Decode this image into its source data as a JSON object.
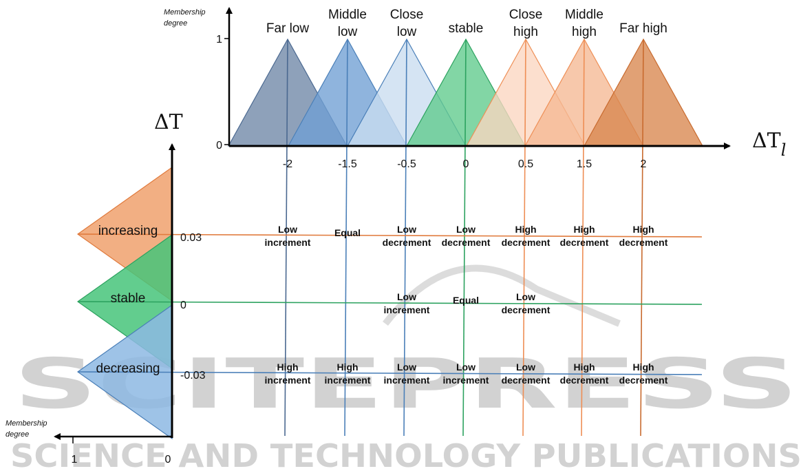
{
  "watermark": {
    "main": "SCITEPRESS",
    "sub": "SCIENCE AND TECHNOLOGY PUBLICATIONS"
  },
  "top_chart": {
    "y_axis_title_line1": "Membership",
    "y_axis_title_line2": "degree",
    "y_tick_one": "1",
    "y_tick_zero": "0",
    "axis_name_main": "ΔT",
    "axis_name_sub": "l",
    "sets": [
      {
        "line1": "Far low",
        "line2": "",
        "center": -2,
        "fill": "#6e87a6",
        "stroke": "#4a6890"
      },
      {
        "line1": "Middle",
        "line2": "low",
        "center": -1.5,
        "fill": "#6f9fd3",
        "stroke": "#4a7fb8"
      },
      {
        "line1": "Close",
        "line2": "low",
        "center": -0.5,
        "fill": "#c9dcef",
        "stroke": "#4a7fb8"
      },
      {
        "line1": "stable",
        "line2": "",
        "center": 0,
        "fill": "#5fcb8c",
        "stroke": "#2ca25f"
      },
      {
        "line1": "Close",
        "line2": "high",
        "center": 0.5,
        "fill": "#fbd6c0",
        "stroke": "#ee8e55"
      },
      {
        "line1": "Middle",
        "line2": "high",
        "center": 1.5,
        "fill": "#f5b994",
        "stroke": "#ee8e55"
      },
      {
        "line1": "Far high",
        "line2": "",
        "center": 2,
        "fill": "#d9864e",
        "stroke": "#c86a2e"
      }
    ],
    "x_ticks": [
      "-2",
      "-1.5",
      "-0.5",
      "0",
      "0.5",
      "1.5",
      "2"
    ]
  },
  "left_chart": {
    "axis_name": "ΔT",
    "x_axis_title_line1": "Membership",
    "x_axis_title_line2": "degree",
    "x_tick_one": "1",
    "x_tick_zero": "0",
    "sets": [
      {
        "label": "increasing",
        "value": "0.03",
        "fill": "#f0a16d",
        "stroke": "#e07a3c"
      },
      {
        "label": "stable",
        "value": "0",
        "fill": "#47c47a",
        "stroke": "#2ca25f"
      },
      {
        "label": "decreasing",
        "value": "-0.03",
        "fill": "#8db8e3",
        "stroke": "#4a7fb8"
      }
    ]
  },
  "rules": [
    {
      "row": 0,
      "col": 0,
      "line1": "Low",
      "line2": "increment"
    },
    {
      "row": 0,
      "col": 1,
      "line1": "Equal",
      "line2": ""
    },
    {
      "row": 0,
      "col": 2,
      "line1": "Low",
      "line2": "decrement"
    },
    {
      "row": 0,
      "col": 3,
      "line1": "Low",
      "line2": "decrement"
    },
    {
      "row": 0,
      "col": 4,
      "line1": "High",
      "line2": "decrement"
    },
    {
      "row": 0,
      "col": 5,
      "line1": "High",
      "line2": "decrement"
    },
    {
      "row": 0,
      "col": 6,
      "line1": "High",
      "line2": "decrement"
    },
    {
      "row": 1,
      "col": 2,
      "line1": "Low",
      "line2": "increment"
    },
    {
      "row": 1,
      "col": 3,
      "line1": "Equal",
      "line2": ""
    },
    {
      "row": 1,
      "col": 4,
      "line1": "Low",
      "line2": "decrement"
    },
    {
      "row": 2,
      "col": 0,
      "line1": "High",
      "line2": "increment"
    },
    {
      "row": 2,
      "col": 1,
      "line1": "High",
      "line2": "increment"
    },
    {
      "row": 2,
      "col": 2,
      "line1": "Low",
      "line2": "increment"
    },
    {
      "row": 2,
      "col": 3,
      "line1": "Low",
      "line2": "increment"
    },
    {
      "row": 2,
      "col": 4,
      "line1": "Low",
      "line2": "decrement"
    },
    {
      "row": 2,
      "col": 5,
      "line1": "High",
      "line2": "decrement"
    },
    {
      "row": 2,
      "col": 6,
      "line1": "High",
      "line2": "decrement"
    }
  ]
}
